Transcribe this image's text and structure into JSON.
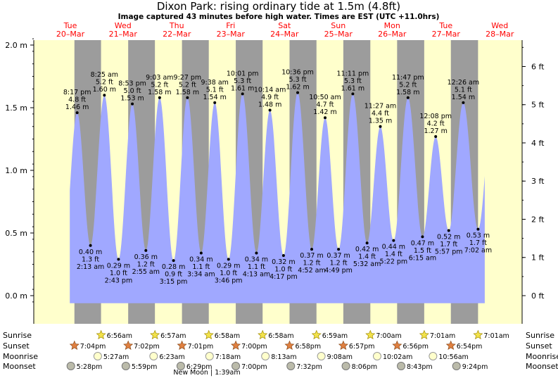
{
  "title": "Dixon Park: rising  ordinary tide at 1.5m (4.8ft)",
  "subtitle": "Image captured 43 minutes before high water. Times are EST (UTC +11.0hrs)",
  "colors": {
    "day": "#ffffcc",
    "night": "#9c9c9c",
    "tide": "#a0a8ff",
    "label_red": "#ff0000",
    "text": "#000000"
  },
  "days": [
    {
      "name": "Tue",
      "date": "20–Mar"
    },
    {
      "name": "Wed",
      "date": "21–Mar"
    },
    {
      "name": "Thu",
      "date": "22–Mar"
    },
    {
      "name": "Fri",
      "date": "23–Mar"
    },
    {
      "name": "Sat",
      "date": "24–Mar"
    },
    {
      "name": "Sun",
      "date": "25–Mar"
    },
    {
      "name": "Mon",
      "date": "26–Mar"
    },
    {
      "name": "Tue",
      "date": "27–Mar"
    },
    {
      "name": "Wed",
      "date": "28–Mar"
    }
  ],
  "chart_data": {
    "type": "area",
    "x_unit": "hours after 20-Mar 00:00 (EST UTC+11)",
    "y_unit": "m",
    "ylim": [
      -0.07,
      2.07
    ],
    "y_ticks_m": [
      0.0,
      0.5,
      1.0,
      1.5,
      2.0
    ],
    "y_ticks_m_labels": [
      "0.0 m",
      "0.5 m",
      "1.0 m",
      "1.5 m",
      "2.0 m"
    ],
    "y_ticks_ft": [
      0,
      1,
      2,
      3,
      4,
      5,
      6
    ],
    "y_ticks_ft_labels": [
      "0 ft",
      "1 ft",
      "2 ft",
      "3 ft",
      "4 ft",
      "5 ft",
      "6 ft"
    ],
    "tides": [
      {
        "t": 20.283,
        "kind": "high",
        "time": "8:17 pm",
        "ft": "4.8 ft",
        "m": "1.46 m",
        "h": 1.46
      },
      {
        "t": 26.217,
        "kind": "low",
        "time": "2:13 am",
        "ft": "1.3 ft",
        "m": "0.40 m",
        "h": 0.4
      },
      {
        "t": 32.417,
        "kind": "high",
        "time": "8:25 am",
        "ft": "5.2 ft",
        "m": "1.60 m",
        "h": 1.6
      },
      {
        "t": 38.717,
        "kind": "low",
        "time": "2:43 pm",
        "ft": "1.0 ft",
        "m": "0.29 m",
        "h": 0.29
      },
      {
        "t": 44.883,
        "kind": "high",
        "time": "8:53 pm",
        "ft": "5.0 ft",
        "m": "1.53 m",
        "h": 1.53
      },
      {
        "t": 50.917,
        "kind": "low",
        "time": "2:55 am",
        "ft": "1.2 ft",
        "m": "0.36 m",
        "h": 0.36
      },
      {
        "t": 57.05,
        "kind": "high",
        "time": "9:03 am",
        "ft": "5.2 ft",
        "m": "1.58 m",
        "h": 1.58
      },
      {
        "t": 63.25,
        "kind": "low",
        "time": "3:15 pm",
        "ft": "0.9 ft",
        "m": "0.28 m",
        "h": 0.28
      },
      {
        "t": 69.45,
        "kind": "high",
        "time": "9:27 pm",
        "ft": "5.2 ft",
        "m": "1.58 m",
        "h": 1.58
      },
      {
        "t": 75.567,
        "kind": "low",
        "time": "3:34 am",
        "ft": "1.1 ft",
        "m": "0.34 m",
        "h": 0.34
      },
      {
        "t": 81.633,
        "kind": "high",
        "time": "9:38 am",
        "ft": "5.1 ft",
        "m": "1.54 m",
        "h": 1.54
      },
      {
        "t": 87.767,
        "kind": "low",
        "time": "3:46 pm",
        "ft": "1.0 ft",
        "m": "0.29 m",
        "h": 0.29
      },
      {
        "t": 94.017,
        "kind": "high",
        "time": "10:01 pm",
        "ft": "5.3 ft",
        "m": "1.61 m",
        "h": 1.61
      },
      {
        "t": 100.217,
        "kind": "low",
        "time": "4:13 am",
        "ft": "1.1 ft",
        "m": "0.34 m",
        "h": 0.34
      },
      {
        "t": 106.233,
        "kind": "high",
        "time": "10:14 am",
        "ft": "4.9 ft",
        "m": "1.48 m",
        "h": 1.48
      },
      {
        "t": 112.283,
        "kind": "low",
        "time": "4:17 pm",
        "ft": "1.0 ft",
        "m": "0.32 m",
        "h": 0.32
      },
      {
        "t": 118.6,
        "kind": "high",
        "time": "10:36 pm",
        "ft": "5.3 ft",
        "m": "1.62 m",
        "h": 1.62
      },
      {
        "t": 124.867,
        "kind": "low",
        "time": "4:52 am",
        "ft": "1.2 ft",
        "m": "0.37 m",
        "h": 0.37
      },
      {
        "t": 130.833,
        "kind": "high",
        "time": "10:50 am",
        "ft": "4.7 ft",
        "m": "1.42 m",
        "h": 1.42
      },
      {
        "t": 136.817,
        "kind": "low",
        "time": "4:49 pm",
        "ft": "1.2 ft",
        "m": "0.37 m",
        "h": 0.37
      },
      {
        "t": 143.183,
        "kind": "high",
        "time": "11:11 pm",
        "ft": "5.3 ft",
        "m": "1.61 m",
        "h": 1.61
      },
      {
        "t": 149.533,
        "kind": "low",
        "time": "5:32 am",
        "ft": "1.4 ft",
        "m": "0.42 m",
        "h": 0.42
      },
      {
        "t": 155.45,
        "kind": "high",
        "time": "11:27 am",
        "ft": "4.4 ft",
        "m": "1.35 m",
        "h": 1.35
      },
      {
        "t": 161.367,
        "kind": "low",
        "time": "5:22 pm",
        "ft": "1.4 ft",
        "m": "0.44 m",
        "h": 0.44
      },
      {
        "t": 167.783,
        "kind": "high",
        "time": "11:47 pm",
        "ft": "5.2 ft",
        "m": "1.58 m",
        "h": 1.58
      },
      {
        "t": 174.25,
        "kind": "low",
        "time": "6:15 am",
        "ft": "1.5 ft",
        "m": "0.47 m",
        "h": 0.47
      },
      {
        "t": 180.133,
        "kind": "high",
        "time": "12:08 pm",
        "ft": "4.2 ft",
        "m": "1.27 m",
        "h": 1.27
      },
      {
        "t": 185.95,
        "kind": "low",
        "time": "5:57 pm",
        "ft": "1.7 ft",
        "m": "0.52 m",
        "h": 0.52
      },
      {
        "t": 192.433,
        "kind": "high",
        "time": "12:26 am",
        "ft": "5.1 ft",
        "m": "1.54 m",
        "h": 1.54
      },
      {
        "t": 199.033,
        "kind": "low",
        "time": "7:02 am",
        "ft": "1.7 ft",
        "m": "0.53 m",
        "h": 0.53
      }
    ],
    "series_extent_hours": [
      17.0,
      202.0
    ]
  },
  "sun": {
    "sunrise_times": [
      "6:56am",
      "6:57am",
      "6:58am",
      "6:58am",
      "6:59am",
      "7:00am",
      "7:01am",
      "7:01am"
    ],
    "sunrise_hours": [
      30.933,
      54.95,
      78.967,
      102.967,
      126.983,
      151.0,
      175.017,
      199.017
    ],
    "sunset_times": [
      "7:04pm",
      "7:02pm",
      "7:01pm",
      "7:00pm",
      "6:58pm",
      "6:57pm",
      "6:56pm",
      "6:54pm"
    ],
    "sunset_hours": [
      19.067,
      43.033,
      67.017,
      91.0,
      114.967,
      138.95,
      162.933,
      186.9
    ]
  },
  "moon": {
    "moonrise_times": [
      "5:27am",
      "6:23am",
      "7:18am",
      "8:13am",
      "9:08am",
      "10:02am",
      "10:56am"
    ],
    "moonrise_hours": [
      29.45,
      54.383,
      79.3,
      104.217,
      129.133,
      154.033,
      178.933
    ],
    "moonset_times": [
      "5:28pm",
      "5:59pm",
      "6:29pm",
      "7:00pm",
      "7:32pm",
      "8:06pm",
      "8:43pm",
      "9:24pm"
    ],
    "moonset_hours": [
      17.467,
      41.983,
      66.483,
      91.0,
      115.533,
      140.1,
      164.717,
      189.4
    ],
    "phase_note": "New Moon | 1:39am"
  },
  "row_labels": {
    "sunrise": "Sunrise",
    "sunset": "Sunset",
    "moonrise": "Moonrise",
    "moonset": "Moonset"
  }
}
